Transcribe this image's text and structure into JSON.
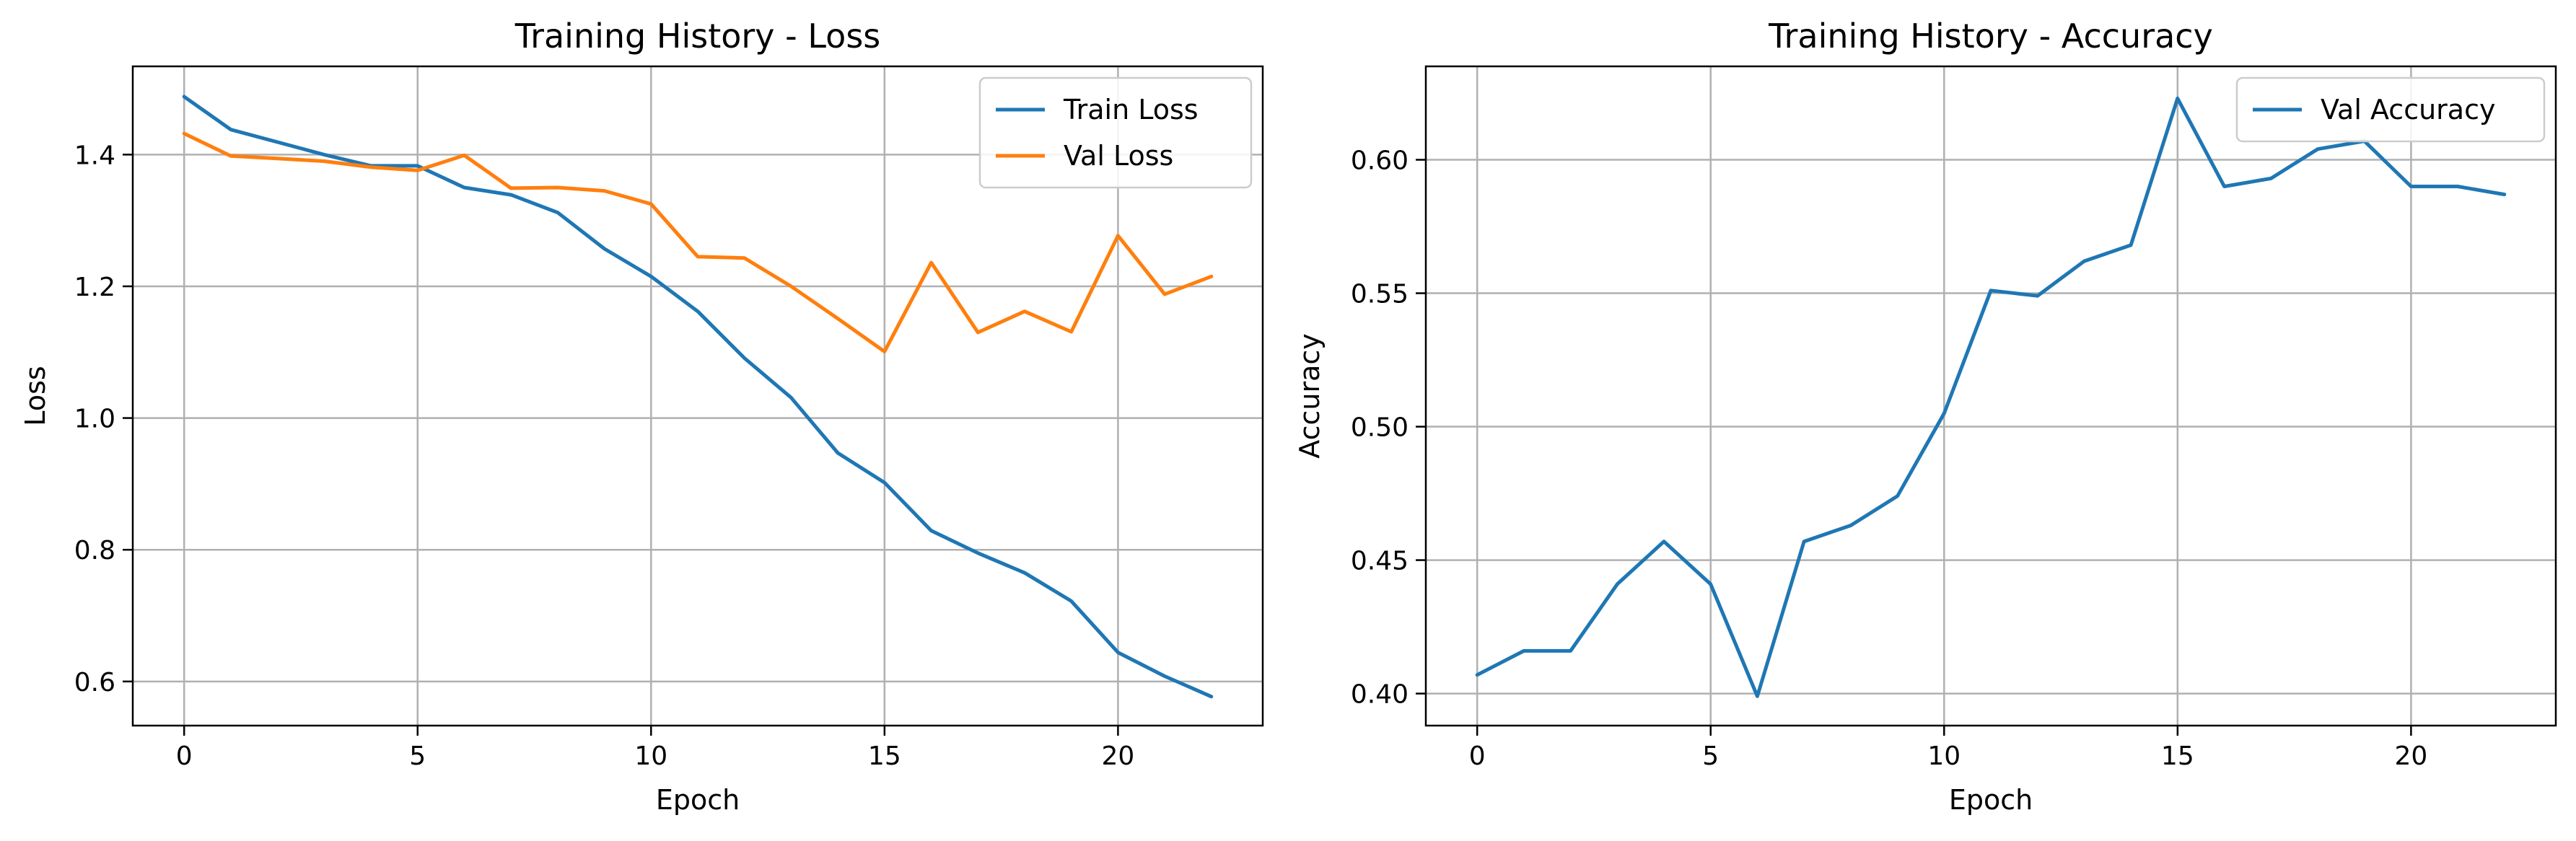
{
  "chart_data": [
    {
      "type": "line",
      "title": "Training History - Loss",
      "xlabel": "Epoch",
      "ylabel": "Loss",
      "xlim": [
        -1.1,
        23.1
      ],
      "ylim": [
        0.533,
        1.534
      ],
      "xticks": [
        0,
        5,
        10,
        15,
        20
      ],
      "yticks": [
        0.6,
        0.8,
        1.0,
        1.2,
        1.4
      ],
      "xtick_labels": [
        "0",
        "5",
        "10",
        "15",
        "20"
      ],
      "ytick_labels": [
        "0.6",
        "0.8",
        "1.0",
        "1.2",
        "1.4"
      ],
      "grid": true,
      "legend_position": "upper right",
      "x": [
        0,
        1,
        2,
        3,
        4,
        5,
        6,
        7,
        8,
        9,
        10,
        11,
        12,
        13,
        14,
        15,
        16,
        17,
        18,
        19,
        20,
        21,
        22
      ],
      "series": [
        {
          "name": "Train Loss",
          "color": "#1f77b4",
          "values": [
            1.488,
            1.438,
            1.419,
            1.4,
            1.383,
            1.383,
            1.35,
            1.339,
            1.312,
            1.257,
            1.215,
            1.162,
            1.091,
            1.031,
            0.947,
            0.902,
            0.829,
            0.795,
            0.765,
            0.722,
            0.644,
            0.608,
            0.577
          ]
        },
        {
          "name": "Val Loss",
          "color": "#ff7f0e",
          "values": [
            1.432,
            1.398,
            1.394,
            1.39,
            1.381,
            1.376,
            1.399,
            1.349,
            1.35,
            1.345,
            1.325,
            1.245,
            1.243,
            1.2,
            1.151,
            1.101,
            1.236,
            1.13,
            1.162,
            1.131,
            1.277,
            1.188,
            1.215
          ]
        }
      ]
    },
    {
      "type": "line",
      "title": "Training History - Accuracy",
      "xlabel": "Epoch",
      "ylabel": "Accuracy",
      "xlim": [
        -1.1,
        23.1
      ],
      "ylim": [
        0.388,
        0.635
      ],
      "xticks": [
        0,
        5,
        10,
        15,
        20
      ],
      "yticks": [
        0.4,
        0.45,
        0.5,
        0.55,
        0.6
      ],
      "xtick_labels": [
        "0",
        "5",
        "10",
        "15",
        "20"
      ],
      "ytick_labels": [
        "0.40",
        "0.45",
        "0.50",
        "0.55",
        "0.60"
      ],
      "grid": true,
      "legend_position": "upper right",
      "x": [
        0,
        1,
        2,
        3,
        4,
        5,
        6,
        7,
        8,
        9,
        10,
        11,
        12,
        13,
        14,
        15,
        16,
        17,
        18,
        19,
        20,
        21,
        22
      ],
      "series": [
        {
          "name": "Val Accuracy",
          "color": "#1f77b4",
          "values": [
            0.407,
            0.416,
            0.416,
            0.441,
            0.457,
            0.441,
            0.399,
            0.457,
            0.463,
            0.474,
            0.505,
            0.551,
            0.549,
            0.562,
            0.568,
            0.623,
            0.59,
            0.593,
            0.604,
            0.607,
            0.59,
            0.59,
            0.587
          ]
        }
      ]
    }
  ]
}
